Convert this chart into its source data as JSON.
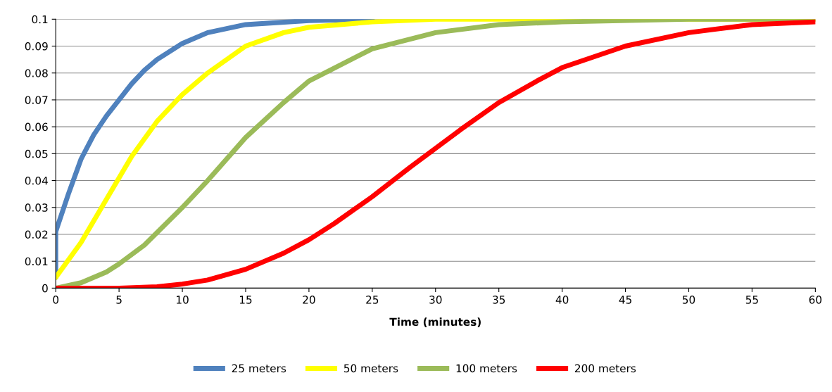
{
  "chart_data": {
    "type": "line",
    "xlabel": "Time (minutes)",
    "xlim": [
      0,
      60
    ],
    "xticks": [
      0,
      5,
      10,
      15,
      20,
      25,
      30,
      35,
      40,
      45,
      50,
      55,
      60
    ],
    "ylim": [
      0,
      0.1
    ],
    "yticks": [
      0,
      0.01,
      0.02,
      0.03,
      0.04,
      0.05,
      0.06,
      0.07,
      0.08,
      0.09,
      0.1
    ],
    "grid": "y",
    "legend": "bottom",
    "marker": "none",
    "line_style": "solid",
    "series": [
      {
        "name": "25 meters",
        "color": "#4f81bd",
        "x": [
          0,
          0,
          1,
          2,
          3,
          4,
          5,
          6,
          7,
          8,
          10,
          12,
          15,
          20,
          25
        ],
        "values": [
          0.004,
          0.021,
          0.035,
          0.048,
          0.057,
          0.064,
          0.07,
          0.076,
          0.081,
          0.085,
          0.091,
          0.095,
          0.098,
          0.0995,
          0.1
        ]
      },
      {
        "name": "50 meters",
        "color": "#ffff00",
        "x": [
          0,
          2,
          4,
          5,
          6,
          8,
          10,
          12,
          15,
          18,
          20,
          25,
          30,
          60
        ],
        "values": [
          0.004,
          0.017,
          0.033,
          0.041,
          0.049,
          0.062,
          0.072,
          0.08,
          0.09,
          0.095,
          0.097,
          0.099,
          0.1,
          0.1
        ]
      },
      {
        "name": "100 meters",
        "color": "#9bbb59",
        "x": [
          0,
          2,
          4,
          5,
          7,
          10,
          12,
          15,
          18,
          20,
          25,
          30,
          35,
          40,
          50,
          60
        ],
        "values": [
          0,
          0.002,
          0.006,
          0.009,
          0.016,
          0.03,
          0.04,
          0.056,
          0.069,
          0.077,
          0.089,
          0.095,
          0.098,
          0.099,
          0.1,
          0.1
        ]
      },
      {
        "name": "200 meters",
        "color": "#ff0000",
        "x": [
          0,
          5,
          8,
          10,
          12,
          15,
          18,
          20,
          22,
          25,
          28,
          30,
          32,
          35,
          38,
          40,
          45,
          50,
          55,
          60
        ],
        "values": [
          0,
          0,
          0.0005,
          0.0015,
          0.003,
          0.007,
          0.013,
          0.018,
          0.024,
          0.034,
          0.045,
          0.052,
          0.059,
          0.069,
          0.077,
          0.082,
          0.09,
          0.095,
          0.098,
          0.099
        ]
      }
    ]
  }
}
